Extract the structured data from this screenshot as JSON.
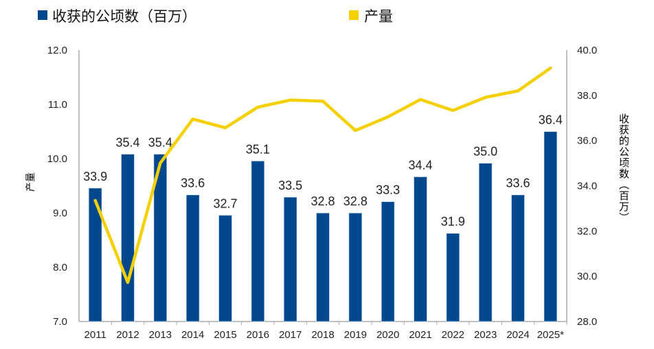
{
  "chart_data": {
    "type": "bar+line",
    "categories": [
      "2011",
      "2012",
      "2013",
      "2014",
      "2015",
      "2016",
      "2017",
      "2018",
      "2019",
      "2020",
      "2021",
      "2022",
      "2023",
      "2024",
      "2025*"
    ],
    "series": [
      {
        "name": "收获的公顷数（百万）",
        "type": "bar",
        "axis": "right",
        "color": "#03488c",
        "values": [
          33.9,
          35.4,
          35.4,
          33.6,
          32.7,
          35.1,
          33.5,
          32.8,
          32.8,
          33.3,
          34.4,
          31.9,
          35.0,
          33.6,
          36.4
        ]
      },
      {
        "name": "产量",
        "type": "line",
        "axis": "left",
        "color": "#f5d000",
        "values": [
          9.23,
          7.72,
          9.92,
          10.73,
          10.57,
          10.95,
          11.08,
          11.06,
          10.52,
          10.77,
          11.09,
          10.89,
          11.13,
          11.25,
          11.67
        ]
      }
    ],
    "data_labels": [
      "33.9",
      "35.4",
      "35.4",
      "33.6",
      "32.7",
      "35.1",
      "33.5",
      "32.8",
      "32.8",
      "33.3",
      "34.4",
      "31.9",
      "35.0",
      "33.6",
      "36.4"
    ],
    "left_axis": {
      "label": "产量",
      "ylim": [
        7.0,
        12.0
      ],
      "ticks": [
        "7.0",
        "8.0",
        "9.0",
        "10.0",
        "11.0",
        "12.0"
      ]
    },
    "right_axis": {
      "label": "收获的公顷数（百万）",
      "ylim": [
        28.0,
        40.0
      ],
      "ticks": [
        "28.0",
        "30.0",
        "32.0",
        "34.0",
        "36.0",
        "38.0",
        "40.0"
      ]
    },
    "legend": {
      "placement": "top",
      "items": [
        "收获的公顷数（百万）",
        "产量"
      ]
    },
    "grid": false
  }
}
